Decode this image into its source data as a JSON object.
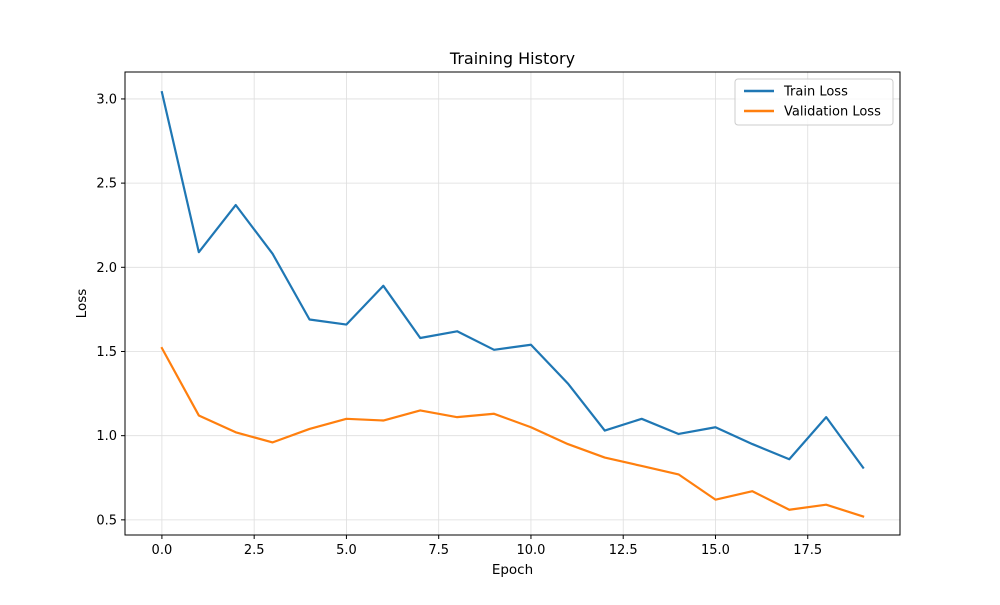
{
  "chart_data": {
    "type": "line",
    "title": "Training History",
    "xlabel": "Epoch",
    "ylabel": "Loss",
    "x": [
      0,
      1,
      2,
      3,
      4,
      5,
      6,
      7,
      8,
      9,
      10,
      11,
      12,
      13,
      14,
      15,
      16,
      17,
      18,
      19
    ],
    "xlim": [
      -1.0,
      20.0
    ],
    "ylim": [
      0.41,
      3.16
    ],
    "xticks": [
      0,
      2.5,
      5,
      7.5,
      10,
      12.5,
      15,
      17.5
    ],
    "xtick_labels": [
      "0.0",
      "2.5",
      "5.0",
      "7.5",
      "10.0",
      "12.5",
      "15.0",
      "17.5"
    ],
    "yticks": [
      0.5,
      1.0,
      1.5,
      2.0,
      2.5,
      3.0
    ],
    "ytick_labels": [
      "0.5",
      "1.0",
      "1.5",
      "2.0",
      "2.5",
      "3.0"
    ],
    "grid": true,
    "legend_position": "top-right",
    "series": [
      {
        "name": "Train Loss",
        "color": "#1f77b4",
        "values": [
          3.04,
          2.09,
          2.37,
          2.08,
          1.69,
          1.66,
          1.89,
          1.58,
          1.62,
          1.51,
          1.54,
          1.31,
          1.03,
          1.1,
          1.01,
          1.05,
          0.95,
          0.86,
          1.11,
          0.81
        ]
      },
      {
        "name": "Validation Loss",
        "color": "#ff7f0e",
        "values": [
          1.52,
          1.12,
          1.02,
          0.96,
          1.04,
          1.1,
          1.09,
          1.15,
          1.11,
          1.13,
          1.05,
          0.95,
          0.87,
          0.82,
          0.77,
          0.62,
          0.67,
          0.56,
          0.59,
          0.52
        ]
      }
    ]
  }
}
